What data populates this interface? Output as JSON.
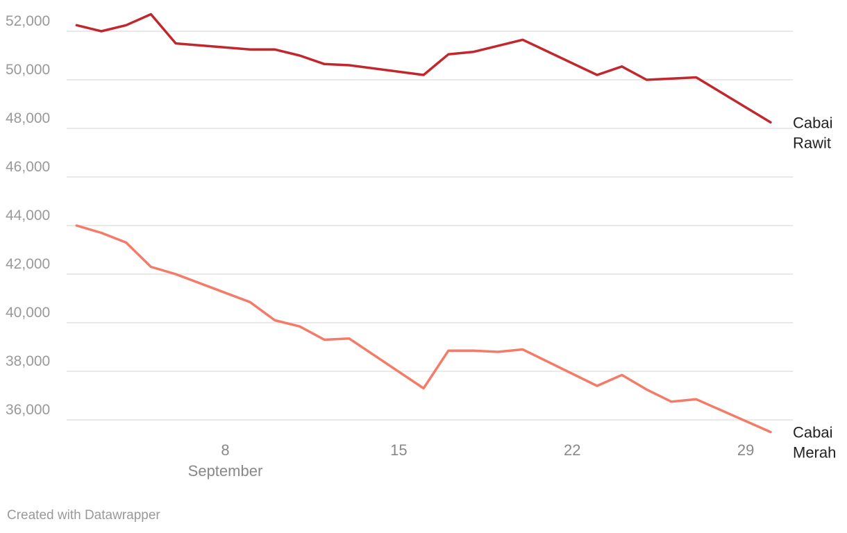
{
  "chart_data": {
    "type": "line",
    "x_unit": "day of September",
    "x_ticks": [
      8,
      15,
      22,
      29
    ],
    "x_month_label": "September",
    "y_ticks": [
      36000,
      38000,
      40000,
      42000,
      44000,
      46000,
      48000,
      50000,
      52000
    ],
    "y_tick_labels": [
      "36,000",
      "38,000",
      "40,000",
      "42,000",
      "44,000",
      "46,000",
      "48,000",
      "50,000",
      "52,000"
    ],
    "xlim": [
      1.6,
      30.9
    ],
    "ylim": [
      35000,
      53000
    ],
    "grid": "horizontal",
    "legend": "direct labels at line ends",
    "series": [
      {
        "name": "Cabai Rawit",
        "label_lines": [
          "Cabai",
          "Rawit"
        ],
        "color": "#c1272d",
        "points": [
          [
            2,
            52250
          ],
          [
            3,
            52000
          ],
          [
            4,
            52250
          ],
          [
            5,
            52700
          ],
          [
            6,
            51500
          ],
          [
            9,
            51250
          ],
          [
            10,
            51250
          ],
          [
            11,
            51000
          ],
          [
            12,
            50650
          ],
          [
            13,
            50600
          ],
          [
            16,
            50200
          ],
          [
            17,
            51050
          ],
          [
            18,
            51150
          ],
          [
            20,
            51650
          ],
          [
            23,
            50200
          ],
          [
            24,
            50550
          ],
          [
            25,
            50000
          ],
          [
            27,
            50100
          ],
          [
            30,
            48250
          ]
        ]
      },
      {
        "name": "Cabai Merah",
        "label_lines": [
          "Cabai",
          "Merah"
        ],
        "color": "#f47b67",
        "points": [
          [
            2,
            44000
          ],
          [
            3,
            43700
          ],
          [
            4,
            43300
          ],
          [
            5,
            42300
          ],
          [
            6,
            42000
          ],
          [
            9,
            40850
          ],
          [
            10,
            40100
          ],
          [
            11,
            39850
          ],
          [
            12,
            39300
          ],
          [
            13,
            39350
          ],
          [
            16,
            37300
          ],
          [
            17,
            38850
          ],
          [
            18,
            38850
          ],
          [
            19,
            38800
          ],
          [
            20,
            38900
          ],
          [
            23,
            37400
          ],
          [
            24,
            37850
          ],
          [
            25,
            37250
          ],
          [
            26,
            36750
          ],
          [
            27,
            36850
          ],
          [
            30,
            35500
          ]
        ]
      }
    ]
  },
  "footer": {
    "credit": "Created with Datawrapper"
  }
}
